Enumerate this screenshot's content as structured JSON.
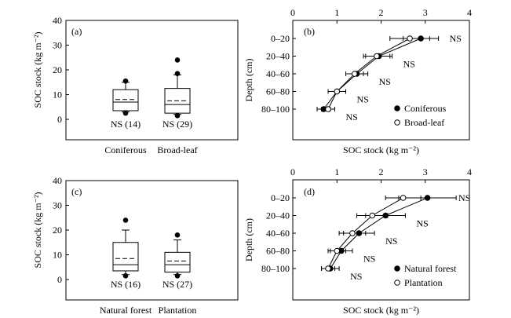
{
  "chart_data": [
    {
      "panel": "(a)",
      "type": "box",
      "ylabel": "SOC stock (kg m⁻²)",
      "ylim": [
        0,
        40
      ],
      "yticks": [
        "0",
        "10",
        "20",
        "30",
        "40"
      ],
      "categories": [
        "Coniferous",
        "Broad-leaf"
      ],
      "annotations": [
        "NS (14)",
        "NS (29)"
      ],
      "boxes": [
        {
          "whisker_low": 3,
          "q1": 3.5,
          "median": 7,
          "mean": 8,
          "q3": 12,
          "whisker_high": 15,
          "outliers": [
            2.5,
            15.5
          ]
        },
        {
          "whisker_low": 2,
          "q1": 2.5,
          "median": 6,
          "mean": 7.5,
          "q3": 12.5,
          "whisker_high": 18,
          "outliers": [
            1.5,
            18.5,
            24
          ]
        }
      ]
    },
    {
      "panel": "(b)",
      "type": "line",
      "xlabel": "SOC stock (kg m⁻²)",
      "ylabel": "Depth (cm)",
      "xlim": [
        0,
        4
      ],
      "xticks": [
        "0",
        "1",
        "2",
        "3",
        "4"
      ],
      "categories": [
        "0–20",
        "20–40",
        "40–60",
        "60–80",
        "80–100"
      ],
      "legend_position": "lower-right",
      "series": [
        {
          "name": "Coniferous",
          "marker": "filled",
          "values": [
            2.9,
            1.95,
            1.45,
            1.0,
            0.7
          ],
          "err": [
            0.4,
            0.3,
            0.25,
            0.2,
            0.15
          ]
        },
        {
          "name": "Broad-leaf",
          "marker": "open",
          "values": [
            2.65,
            1.9,
            1.4,
            1.0,
            0.8
          ],
          "err": [
            0.45,
            0.3,
            0.2,
            0.2,
            0.15
          ]
        }
      ],
      "annotations": [
        "NS",
        "NS",
        "NS",
        "NS",
        "NS"
      ]
    },
    {
      "panel": "(c)",
      "type": "box",
      "ylabel": "SOC stock (kg m⁻²)",
      "ylim": [
        0,
        40
      ],
      "yticks": [
        "0",
        "10",
        "20",
        "30",
        "40"
      ],
      "categories": [
        "Natural forest",
        "Plantation"
      ],
      "annotations": [
        "NS (16)",
        "NS (27)"
      ],
      "boxes": [
        {
          "whisker_low": 2,
          "q1": 3.5,
          "median": 6,
          "mean": 8.5,
          "q3": 15,
          "whisker_high": 20,
          "outliers": [
            1.5,
            24
          ]
        },
        {
          "whisker_low": 2,
          "q1": 3,
          "median": 6,
          "mean": 7.5,
          "q3": 11,
          "whisker_high": 16,
          "outliers": [
            1.5,
            18
          ]
        }
      ]
    },
    {
      "panel": "(d)",
      "type": "line",
      "xlabel": "SOC stock (kg m⁻²)",
      "ylabel": "Depth (cm)",
      "xlim": [
        0,
        4
      ],
      "xticks": [
        "0",
        "1",
        "2",
        "3",
        "4"
      ],
      "categories": [
        "0–20",
        "20–40",
        "40–60",
        "60–80",
        "80–100"
      ],
      "legend_position": "lower-right",
      "series": [
        {
          "name": "Natural forest",
          "marker": "filled",
          "values": [
            3.05,
            2.1,
            1.5,
            1.1,
            0.85
          ],
          "err": [
            0.65,
            0.45,
            0.35,
            0.25,
            0.2
          ]
        },
        {
          "name": "Plantation",
          "marker": "open",
          "values": [
            2.5,
            1.8,
            1.35,
            1.0,
            0.8
          ],
          "err": [
            0.4,
            0.35,
            0.3,
            0.2,
            0.15
          ]
        }
      ],
      "annotations": [
        "NS",
        "NS",
        "NS",
        "NS",
        "NS"
      ]
    }
  ]
}
